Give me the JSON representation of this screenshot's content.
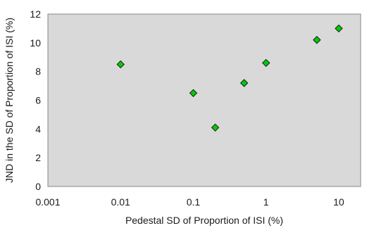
{
  "chart_data": {
    "type": "scatter",
    "title": "",
    "xlabel": "Pedestal SD of Proportion of ISI (%)",
    "ylabel": "JND in the SD of Proportion of ISI (%)",
    "x_scale": "log",
    "xlim": [
      0.001,
      20
    ],
    "ylim": [
      0,
      12
    ],
    "x_ticks": [
      0.001,
      0.01,
      0.1,
      1,
      10
    ],
    "x_tick_labels": [
      "0.001",
      "0.01",
      "0.1",
      "1",
      "10"
    ],
    "y_ticks": [
      0,
      2,
      4,
      6,
      8,
      10,
      12
    ],
    "y_tick_labels": [
      "0",
      "2",
      "4",
      "6",
      "8",
      "10",
      "12"
    ],
    "grid": false,
    "legend": "none",
    "plot_background": "#d9d9d9",
    "marker": "diamond",
    "marker_color": "#00cc00",
    "series": [
      {
        "x": [
          0.01,
          0.1,
          0.2,
          0.5,
          1,
          5,
          10
        ],
        "y": [
          8.5,
          6.5,
          4.1,
          7.2,
          8.6,
          10.2,
          11.0
        ]
      }
    ]
  }
}
